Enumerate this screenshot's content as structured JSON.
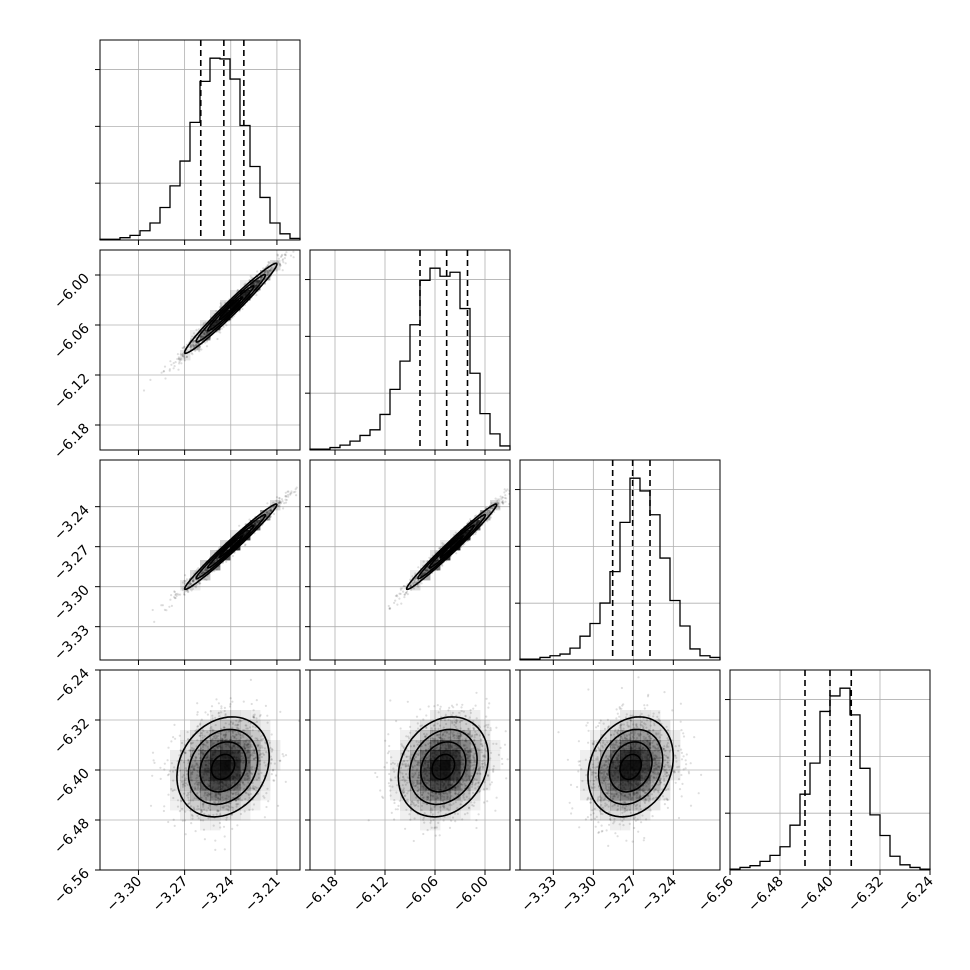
{
  "chart_data": {
    "type": "corner",
    "parameters": 4,
    "grid": true,
    "colors": {
      "ink": "#000000",
      "grid": "#b0b0b0",
      "density": "#000000"
    },
    "axes": [
      {
        "range": [
          -3.325,
          -3.195
        ],
        "ticks": [
          -3.3,
          -3.27,
          -3.24,
          -3.21
        ],
        "tick_labels": [
          "−3.30",
          "−3.27",
          "−3.24",
          "−3.21"
        ]
      },
      {
        "range": [
          -6.21,
          -5.97
        ],
        "ticks": [
          -6.18,
          -6.12,
          -6.06,
          -6.0
        ],
        "tick_labels": [
          "−6.18",
          "−6.12",
          "−6.06",
          "−6.00"
        ]
      },
      {
        "range": [
          -3.355,
          -3.205
        ],
        "ticks": [
          -3.33,
          -3.3,
          -3.27,
          -3.24
        ],
        "tick_labels": [
          "−3.33",
          "−3.30",
          "−3.27",
          "−3.24"
        ]
      },
      {
        "range": [
          -6.56,
          -6.24
        ],
        "ticks": [
          -6.56,
          -6.48,
          -6.4,
          -6.32,
          -6.24
        ],
        "tick_labels": [
          "−6.56",
          "−6.48",
          "−6.40",
          "−6.32",
          "−6.24"
        ]
      }
    ],
    "marginals": [
      {
        "param": 0,
        "bin_edges": [
          -3.325,
          -3.3185,
          -3.312,
          -3.3055,
          -3.299,
          -3.2925,
          -3.286,
          -3.2795,
          -3.273,
          -3.2665,
          -3.26,
          -3.2535,
          -3.247,
          -3.2405,
          -3.234,
          -3.2275,
          -3.221,
          -3.2145,
          -3.208,
          -3.2015,
          -3.195
        ],
        "counts": [
          1,
          1,
          3,
          6,
          12,
          22,
          42,
          70,
          102,
          152,
          205,
          235,
          234,
          208,
          148,
          95,
          55,
          22,
          8,
          2
        ],
        "quantiles": [
          -3.2595,
          -3.2445,
          -3.2315
        ]
      },
      {
        "param": 1,
        "bin_edges": [
          -6.21,
          -6.198,
          -6.186,
          -6.174,
          -6.162,
          -6.15,
          -6.138,
          -6.126,
          -6.114,
          -6.102,
          -6.09,
          -6.078,
          -6.066,
          -6.054,
          -6.042,
          -6.03,
          -6.018,
          -6.006,
          -5.994,
          -5.982,
          -5.97
        ],
        "counts": [
          1,
          1,
          3,
          6,
          11,
          18,
          25,
          44,
          75,
          110,
          155,
          210,
          225,
          215,
          220,
          175,
          95,
          45,
          20,
          5
        ],
        "quantiles": [
          -6.078,
          -6.046,
          -6.021
        ]
      },
      {
        "param": 2,
        "bin_edges": [
          -3.355,
          -3.3475,
          -3.34,
          -3.3325,
          -3.325,
          -3.3175,
          -3.31,
          -3.3025,
          -3.295,
          -3.2875,
          -3.28,
          -3.2725,
          -3.265,
          -3.2575,
          -3.25,
          -3.2425,
          -3.235,
          -3.2275,
          -3.22,
          -3.2125,
          -3.205
        ],
        "counts": [
          1,
          1,
          3,
          5,
          7,
          14,
          28,
          43,
          67,
          104,
          162,
          214,
          199,
          171,
          120,
          70,
          40,
          13,
          5,
          3
        ],
        "quantiles": [
          -3.2855,
          -3.2705,
          -3.2575
        ]
      },
      {
        "param": 3,
        "bin_edges": [
          -6.56,
          -6.544,
          -6.528,
          -6.512,
          -6.496,
          -6.48,
          -6.464,
          -6.448,
          -6.432,
          -6.416,
          -6.4,
          -6.384,
          -6.368,
          -6.352,
          -6.336,
          -6.32,
          -6.304,
          -6.288,
          -6.272,
          -6.256,
          -6.24
        ],
        "counts": [
          1,
          3,
          5,
          10,
          17,
          27,
          52,
          88,
          124,
          184,
          202,
          211,
          180,
          118,
          64,
          40,
          16,
          6,
          3,
          1
        ],
        "quantiles": [
          -6.44,
          -6.4,
          -6.366
        ]
      }
    ],
    "pairs": [
      {
        "x_param": 0,
        "y_param": 1,
        "mean": [
          -3.24,
          -6.04
        ],
        "sd": [
          0.015,
          0.027
        ],
        "corr": 0.98
      },
      {
        "x_param": 0,
        "y_param": 2,
        "mean": [
          -3.24,
          -3.27
        ],
        "sd": [
          0.015,
          0.016
        ],
        "corr": 0.985
      },
      {
        "x_param": 1,
        "y_param": 2,
        "mean": [
          -6.04,
          -3.27
        ],
        "sd": [
          0.027,
          0.016
        ],
        "corr": 0.985
      },
      {
        "x_param": 0,
        "y_param": 3,
        "mean": [
          -3.245,
          -6.395
        ],
        "sd": [
          0.015,
          0.04
        ],
        "corr": 0.2
      },
      {
        "x_param": 1,
        "y_param": 3,
        "mean": [
          -6.05,
          -6.395
        ],
        "sd": [
          0.027,
          0.04
        ],
        "corr": 0.2
      },
      {
        "x_param": 2,
        "y_param": 3,
        "mean": [
          -3.272,
          -6.395
        ],
        "sd": [
          0.016,
          0.04
        ],
        "corr": 0.2
      }
    ]
  }
}
